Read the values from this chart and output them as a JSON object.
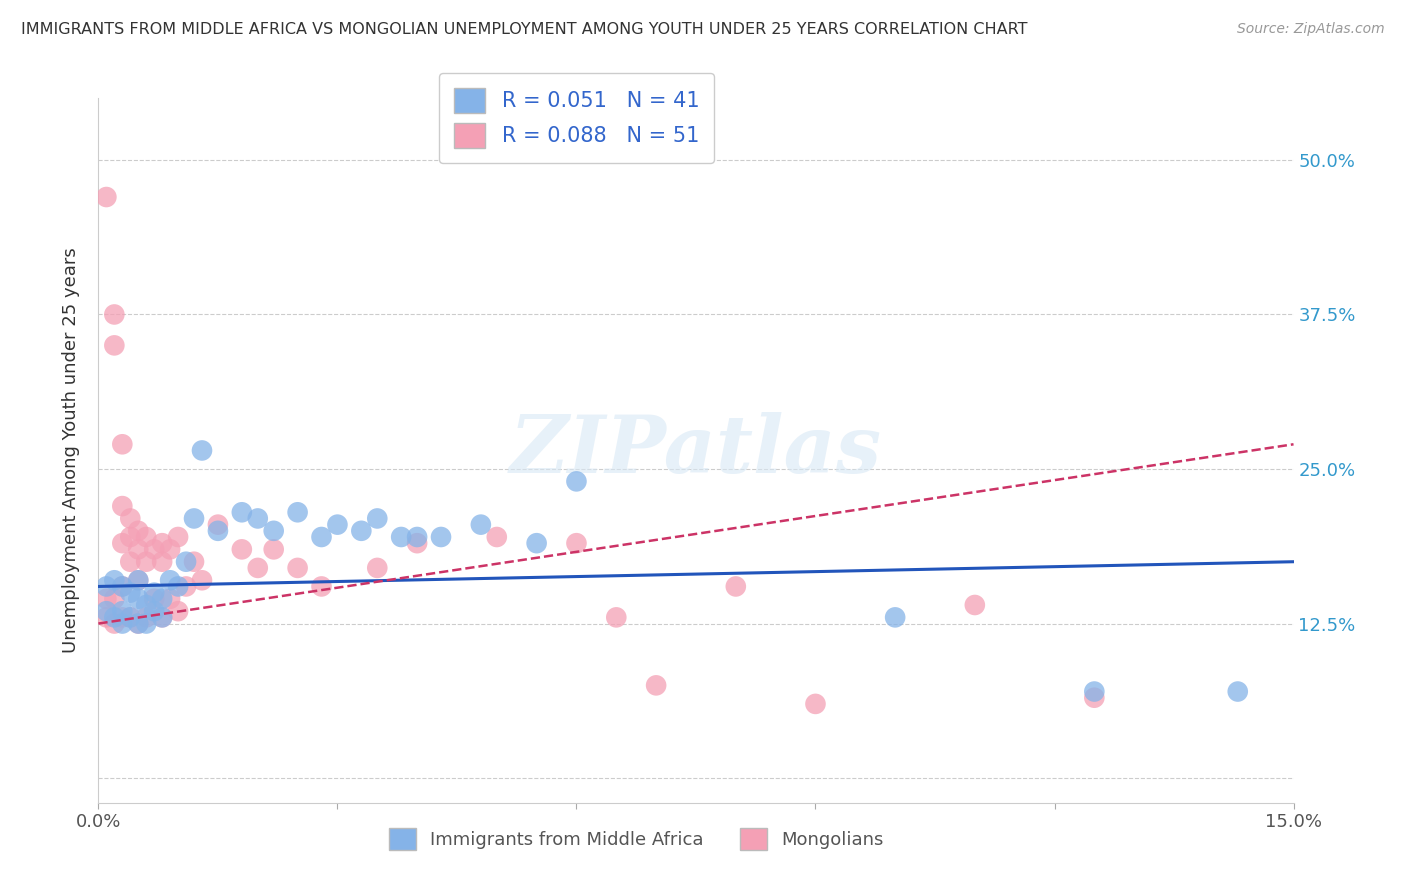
{
  "title": "IMMIGRANTS FROM MIDDLE AFRICA VS MONGOLIAN UNEMPLOYMENT AMONG YOUTH UNDER 25 YEARS CORRELATION CHART",
  "source": "Source: ZipAtlas.com",
  "ylabel": "Unemployment Among Youth under 25 years",
  "xlim": [
    0.0,
    0.15
  ],
  "ylim": [
    -0.02,
    0.55
  ],
  "yticks": [
    0.0,
    0.125,
    0.25,
    0.375,
    0.5
  ],
  "ytick_labels": [
    "",
    "12.5%",
    "25.0%",
    "37.5%",
    "50.0%"
  ],
  "xticks": [
    0.0,
    0.03,
    0.06,
    0.09,
    0.12,
    0.15
  ],
  "blue_R": 0.051,
  "blue_N": 41,
  "pink_R": 0.088,
  "pink_N": 51,
  "blue_color": "#85b3e8",
  "pink_color": "#f4a0b5",
  "blue_line_color": "#2255bb",
  "pink_line_color": "#cc3366",
  "legend_text_color": "#3366cc",
  "watermark": "ZIPatlas",
  "blue_scatter_x": [
    0.001,
    0.001,
    0.002,
    0.002,
    0.003,
    0.003,
    0.003,
    0.004,
    0.004,
    0.005,
    0.005,
    0.005,
    0.006,
    0.006,
    0.007,
    0.007,
    0.008,
    0.008,
    0.009,
    0.01,
    0.011,
    0.012,
    0.013,
    0.015,
    0.018,
    0.02,
    0.022,
    0.025,
    0.028,
    0.03,
    0.033,
    0.035,
    0.038,
    0.04,
    0.043,
    0.048,
    0.055,
    0.06,
    0.1,
    0.125,
    0.143
  ],
  "blue_scatter_y": [
    0.155,
    0.135,
    0.16,
    0.13,
    0.155,
    0.135,
    0.125,
    0.15,
    0.13,
    0.145,
    0.16,
    0.125,
    0.14,
    0.125,
    0.135,
    0.15,
    0.145,
    0.13,
    0.16,
    0.155,
    0.175,
    0.21,
    0.265,
    0.2,
    0.215,
    0.21,
    0.2,
    0.215,
    0.195,
    0.205,
    0.2,
    0.21,
    0.195,
    0.195,
    0.195,
    0.205,
    0.19,
    0.24,
    0.13,
    0.07,
    0.07
  ],
  "pink_scatter_x": [
    0.001,
    0.001,
    0.001,
    0.002,
    0.002,
    0.002,
    0.002,
    0.003,
    0.003,
    0.003,
    0.003,
    0.003,
    0.004,
    0.004,
    0.004,
    0.004,
    0.005,
    0.005,
    0.005,
    0.005,
    0.006,
    0.006,
    0.006,
    0.007,
    0.007,
    0.008,
    0.008,
    0.008,
    0.009,
    0.009,
    0.01,
    0.01,
    0.011,
    0.012,
    0.013,
    0.015,
    0.018,
    0.02,
    0.022,
    0.025,
    0.028,
    0.035,
    0.04,
    0.05,
    0.06,
    0.065,
    0.07,
    0.08,
    0.09,
    0.11,
    0.125
  ],
  "pink_scatter_y": [
    0.47,
    0.145,
    0.13,
    0.375,
    0.35,
    0.145,
    0.125,
    0.27,
    0.22,
    0.19,
    0.155,
    0.13,
    0.21,
    0.195,
    0.175,
    0.13,
    0.2,
    0.185,
    0.16,
    0.125,
    0.195,
    0.175,
    0.13,
    0.185,
    0.145,
    0.19,
    0.175,
    0.13,
    0.185,
    0.145,
    0.195,
    0.135,
    0.155,
    0.175,
    0.16,
    0.205,
    0.185,
    0.17,
    0.185,
    0.17,
    0.155,
    0.17,
    0.19,
    0.195,
    0.19,
    0.13,
    0.075,
    0.155,
    0.06,
    0.14,
    0.065
  ],
  "blue_line_x": [
    0.0,
    0.15
  ],
  "blue_line_y": [
    0.155,
    0.175
  ],
  "pink_line_x": [
    0.0,
    0.15
  ],
  "pink_line_y": [
    0.125,
    0.27
  ]
}
